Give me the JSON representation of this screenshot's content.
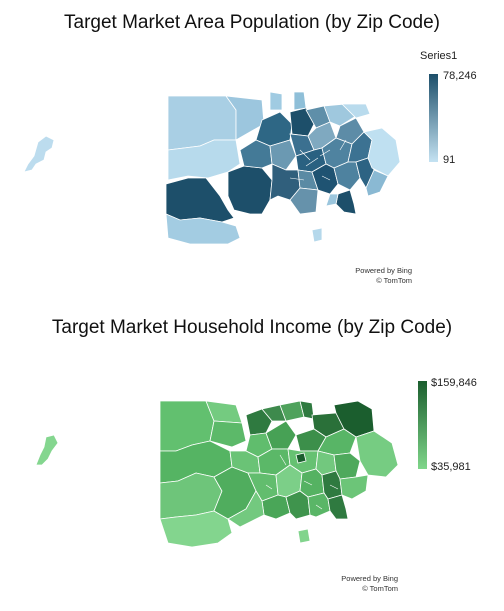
{
  "maps": [
    {
      "title": "Target Market Area Population (by Zip Code)",
      "legend": {
        "name": "Series1",
        "max_label": "78,246",
        "min_label": "91",
        "max": 78246,
        "min": 91,
        "color_max": "#1d4f6a",
        "color_min": "#c4e2f2"
      },
      "credits": [
        "Powered by Bing",
        "© TomTom"
      ]
    },
    {
      "title": "Target Market Household Income (by Zip Code)",
      "legend": {
        "name": "",
        "max_label": "$159,846",
        "min_label": "$35,981",
        "max": 159846,
        "min": 35981,
        "color_max": "#1b5e2e",
        "color_min": "#7fd68a"
      },
      "credits": [
        "Powered by Bing",
        "© TomTom"
      ]
    }
  ]
}
